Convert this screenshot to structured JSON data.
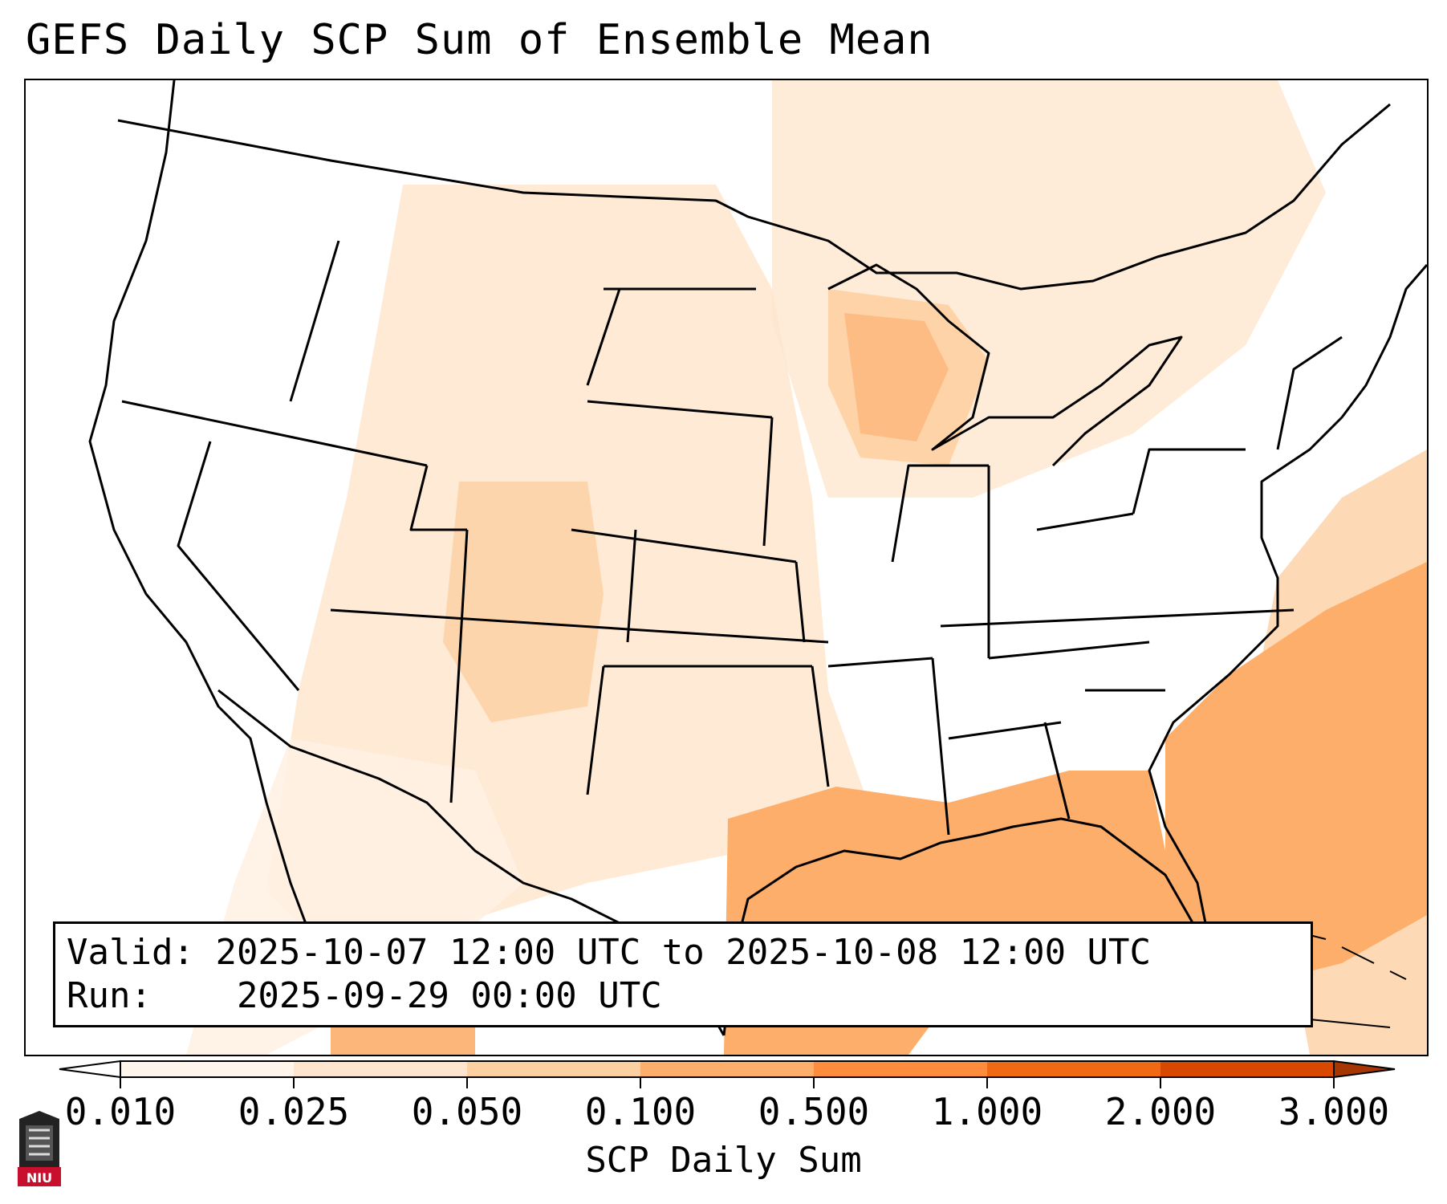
{
  "title": "GEFS Daily SCP Sum of Ensemble Mean",
  "info": {
    "valid_label": "Valid:",
    "valid_value": "2025-10-07 12:00 UTC to 2025-10-08 12:00 UTC",
    "run_label": "Run:",
    "run_value": "2025-09-29 00:00 UTC"
  },
  "colorbar": {
    "label": "SCP Daily Sum",
    "ticks": [
      "0.010",
      "0.025",
      "0.050",
      "0.100",
      "0.500",
      "1.000",
      "2.000",
      "3.000"
    ],
    "colors": [
      "#fff5eb",
      "#fee6ce",
      "#fdd0a2",
      "#fdae6b",
      "#fd8d3c",
      "#f16913",
      "#d94801"
    ],
    "extend_low_color": "#ffffff",
    "extend_high_color": "#a63603"
  },
  "logo": {
    "icon": "niu-logo-icon",
    "text": "NIU"
  }
}
